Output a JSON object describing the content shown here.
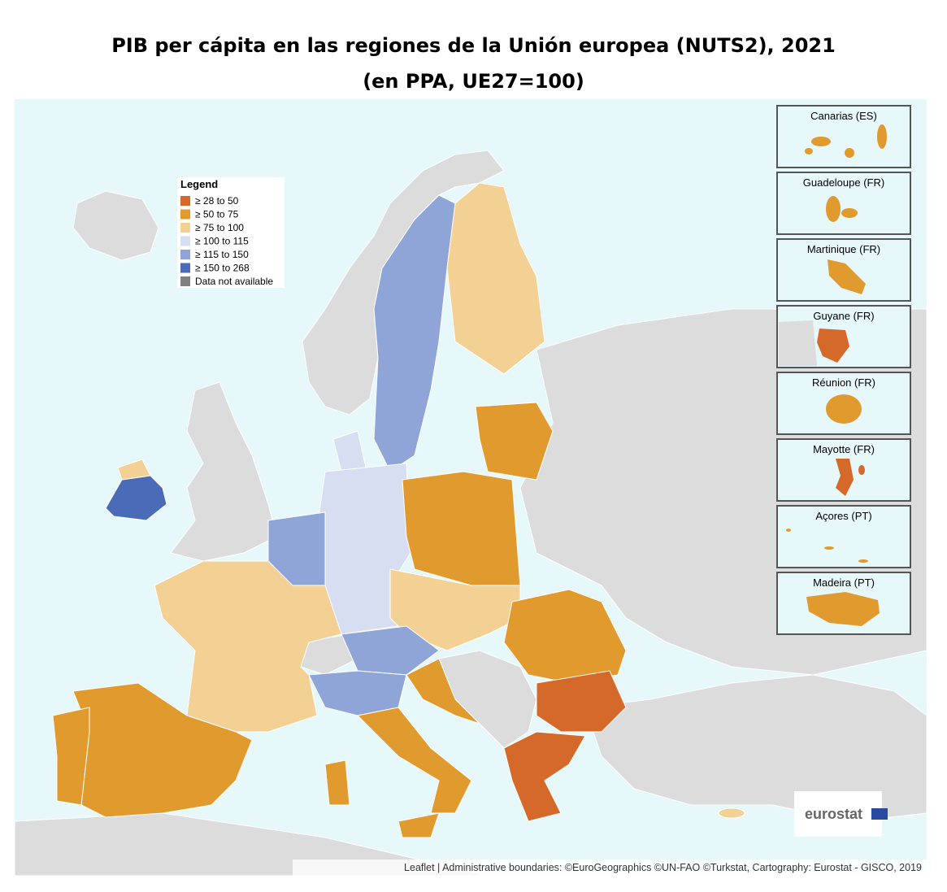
{
  "header": {
    "title": [
      "PIB per cápita en las regiones de la Unión europea (NUTS2), 2021",
      "(en PPA, UE27=100)"
    ]
  },
  "legend": {
    "title": "Legend",
    "items": [
      {
        "label": "≥ 28 to 50",
        "color": "#d4692a"
      },
      {
        "label": "≥ 50 to 75",
        "color": "#e09a2e"
      },
      {
        "label": "≥ 75 to 100",
        "color": "#f3d093"
      },
      {
        "label": "≥ 100 to 115",
        "color": "#d8def2"
      },
      {
        "label": "≥ 115 to 150",
        "color": "#8fa5d8"
      },
      {
        "label": "≥ 150 to 268",
        "color": "#4a6bb8"
      },
      {
        "label": "Data not available",
        "color": "#808080"
      }
    ]
  },
  "insets": [
    {
      "label": "Canarias (ES)",
      "color": "#e09a2e"
    },
    {
      "label": "Guadeloupe (FR)",
      "color": "#e09a2e"
    },
    {
      "label": "Martinique (FR)",
      "color": "#e09a2e"
    },
    {
      "label": "Guyane (FR)",
      "color": "#d4692a"
    },
    {
      "label": "Réunion (FR)",
      "color": "#e09a2e"
    },
    {
      "label": "Mayotte (FR)",
      "color": "#d4692a"
    },
    {
      "label": "Açores (PT)",
      "color": "#e09a2e"
    },
    {
      "label": "Madeira (PT)",
      "color": "#e09a2e"
    }
  ],
  "logo": "eurostat",
  "attribution": "Leaflet | Administrative boundaries: ©EuroGeographics ©UN-FAO ©Turkstat, Cartography: Eurostat - GISCO, 2019"
}
